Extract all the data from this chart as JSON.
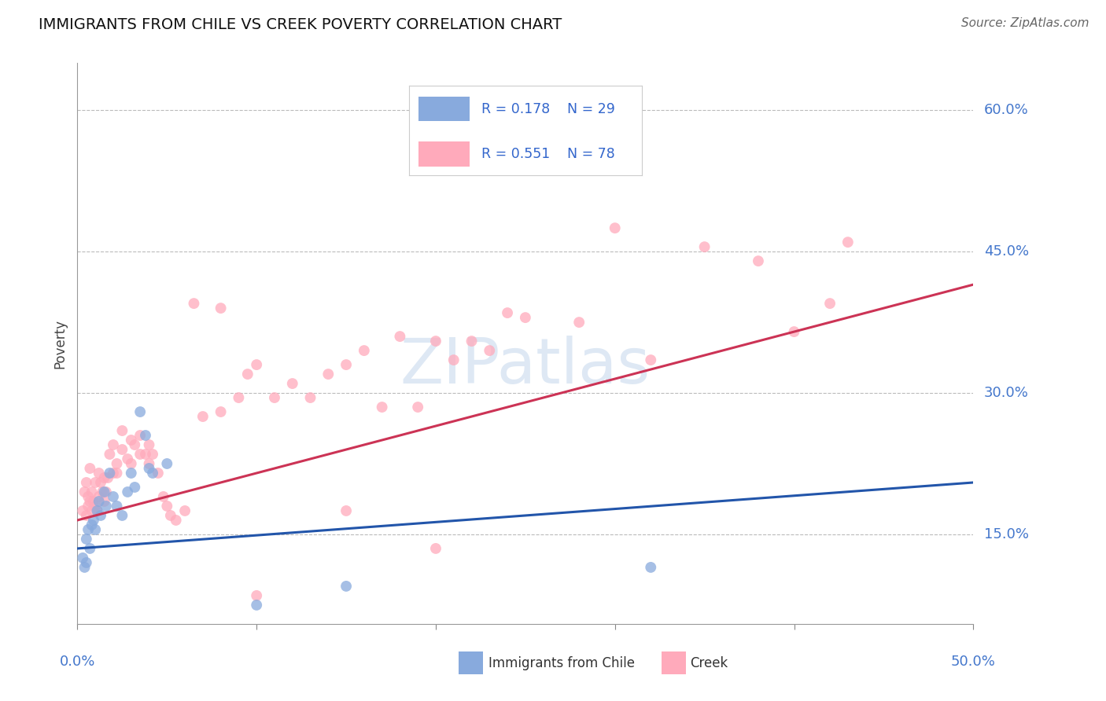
{
  "title": "IMMIGRANTS FROM CHILE VS CREEK POVERTY CORRELATION CHART",
  "source": "Source: ZipAtlas.com",
  "ylabel": "Poverty",
  "ytick_labels": [
    "15.0%",
    "30.0%",
    "45.0%",
    "60.0%"
  ],
  "ytick_values": [
    0.15,
    0.3,
    0.45,
    0.6
  ],
  "xlim": [
    0.0,
    0.5
  ],
  "ylim": [
    0.055,
    0.65
  ],
  "watermark": "ZIPatlas",
  "legend_r1": "R = 0.178",
  "legend_n1": "N = 29",
  "legend_r2": "R = 0.551",
  "legend_n2": "N = 78",
  "legend_label1": "Immigrants from Chile",
  "legend_label2": "Creek",
  "blue_color": "#88aadd",
  "pink_color": "#ffaabb",
  "blue_line_color": "#2255aa",
  "pink_line_color": "#cc3355",
  "blue_scatter": [
    [
      0.003,
      0.125
    ],
    [
      0.004,
      0.115
    ],
    [
      0.005,
      0.12
    ],
    [
      0.005,
      0.145
    ],
    [
      0.006,
      0.155
    ],
    [
      0.007,
      0.135
    ],
    [
      0.008,
      0.16
    ],
    [
      0.009,
      0.165
    ],
    [
      0.01,
      0.155
    ],
    [
      0.011,
      0.175
    ],
    [
      0.012,
      0.185
    ],
    [
      0.013,
      0.17
    ],
    [
      0.015,
      0.195
    ],
    [
      0.016,
      0.18
    ],
    [
      0.018,
      0.215
    ],
    [
      0.02,
      0.19
    ],
    [
      0.022,
      0.18
    ],
    [
      0.025,
      0.17
    ],
    [
      0.028,
      0.195
    ],
    [
      0.03,
      0.215
    ],
    [
      0.032,
      0.2
    ],
    [
      0.035,
      0.28
    ],
    [
      0.038,
      0.255
    ],
    [
      0.04,
      0.22
    ],
    [
      0.042,
      0.215
    ],
    [
      0.05,
      0.225
    ],
    [
      0.1,
      0.075
    ],
    [
      0.15,
      0.095
    ],
    [
      0.32,
      0.115
    ]
  ],
  "pink_scatter": [
    [
      0.003,
      0.175
    ],
    [
      0.004,
      0.195
    ],
    [
      0.005,
      0.17
    ],
    [
      0.005,
      0.205
    ],
    [
      0.006,
      0.18
    ],
    [
      0.006,
      0.19
    ],
    [
      0.007,
      0.185
    ],
    [
      0.007,
      0.22
    ],
    [
      0.008,
      0.175
    ],
    [
      0.008,
      0.195
    ],
    [
      0.009,
      0.185
    ],
    [
      0.01,
      0.18
    ],
    [
      0.01,
      0.205
    ],
    [
      0.011,
      0.175
    ],
    [
      0.012,
      0.19
    ],
    [
      0.012,
      0.215
    ],
    [
      0.013,
      0.205
    ],
    [
      0.014,
      0.195
    ],
    [
      0.015,
      0.21
    ],
    [
      0.015,
      0.185
    ],
    [
      0.016,
      0.195
    ],
    [
      0.017,
      0.21
    ],
    [
      0.018,
      0.235
    ],
    [
      0.02,
      0.245
    ],
    [
      0.02,
      0.215
    ],
    [
      0.022,
      0.225
    ],
    [
      0.022,
      0.215
    ],
    [
      0.025,
      0.24
    ],
    [
      0.025,
      0.26
    ],
    [
      0.028,
      0.23
    ],
    [
      0.03,
      0.25
    ],
    [
      0.03,
      0.225
    ],
    [
      0.032,
      0.245
    ],
    [
      0.035,
      0.255
    ],
    [
      0.035,
      0.235
    ],
    [
      0.038,
      0.235
    ],
    [
      0.04,
      0.245
    ],
    [
      0.04,
      0.225
    ],
    [
      0.042,
      0.235
    ],
    [
      0.045,
      0.215
    ],
    [
      0.048,
      0.19
    ],
    [
      0.05,
      0.18
    ],
    [
      0.052,
      0.17
    ],
    [
      0.055,
      0.165
    ],
    [
      0.06,
      0.175
    ],
    [
      0.065,
      0.395
    ],
    [
      0.07,
      0.275
    ],
    [
      0.08,
      0.28
    ],
    [
      0.09,
      0.295
    ],
    [
      0.095,
      0.32
    ],
    [
      0.1,
      0.33
    ],
    [
      0.11,
      0.295
    ],
    [
      0.12,
      0.31
    ],
    [
      0.13,
      0.295
    ],
    [
      0.14,
      0.32
    ],
    [
      0.15,
      0.33
    ],
    [
      0.16,
      0.345
    ],
    [
      0.17,
      0.285
    ],
    [
      0.18,
      0.36
    ],
    [
      0.19,
      0.285
    ],
    [
      0.2,
      0.355
    ],
    [
      0.21,
      0.335
    ],
    [
      0.22,
      0.355
    ],
    [
      0.23,
      0.345
    ],
    [
      0.25,
      0.38
    ],
    [
      0.28,
      0.375
    ],
    [
      0.3,
      0.475
    ],
    [
      0.32,
      0.335
    ],
    [
      0.35,
      0.455
    ],
    [
      0.38,
      0.44
    ],
    [
      0.4,
      0.365
    ],
    [
      0.42,
      0.395
    ],
    [
      0.43,
      0.46
    ],
    [
      0.2,
      0.135
    ],
    [
      0.1,
      0.085
    ],
    [
      0.24,
      0.385
    ],
    [
      0.15,
      0.175
    ],
    [
      0.08,
      0.39
    ]
  ],
  "blue_line_x": [
    0.0,
    0.5
  ],
  "blue_line_y": [
    0.135,
    0.205
  ],
  "pink_line_x": [
    0.0,
    0.5
  ],
  "pink_line_y": [
    0.165,
    0.415
  ]
}
